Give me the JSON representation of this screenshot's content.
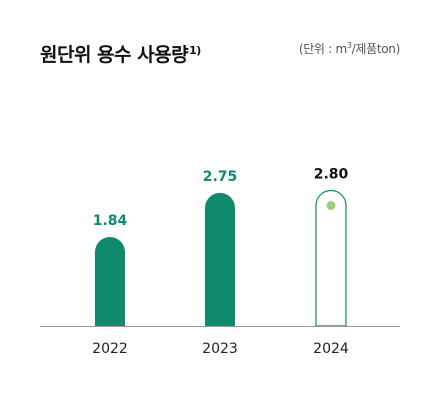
{
  "header": {
    "title": "원단위 용수 사용량",
    "title_footnote": "1)",
    "unit_prefix": "(단위 : m",
    "unit_superscript": "3",
    "unit_suffix": "/제품ton)"
  },
  "colors": {
    "bar_fill": "#0f8a6a",
    "bar_outline": "#0f8a6a",
    "value_label_green": "#0f8a6a",
    "value_label_current": "#111111",
    "dot": "#9bd07a",
    "axis_line": "#999999",
    "tick_label": "#222222"
  },
  "chart_data": {
    "type": "bar",
    "categories": [
      "2022",
      "2023",
      "2024"
    ],
    "values": [
      1.84,
      2.75,
      2.8
    ],
    "value_labels": [
      "1.84",
      "2.75",
      "2.80"
    ],
    "title": "원단위 용수 사용량",
    "unit": "(단위 : m3/제품ton)",
    "bar_styles": [
      "filled",
      "filled",
      "outline"
    ],
    "highlight_index": 2,
    "grid": false
  }
}
